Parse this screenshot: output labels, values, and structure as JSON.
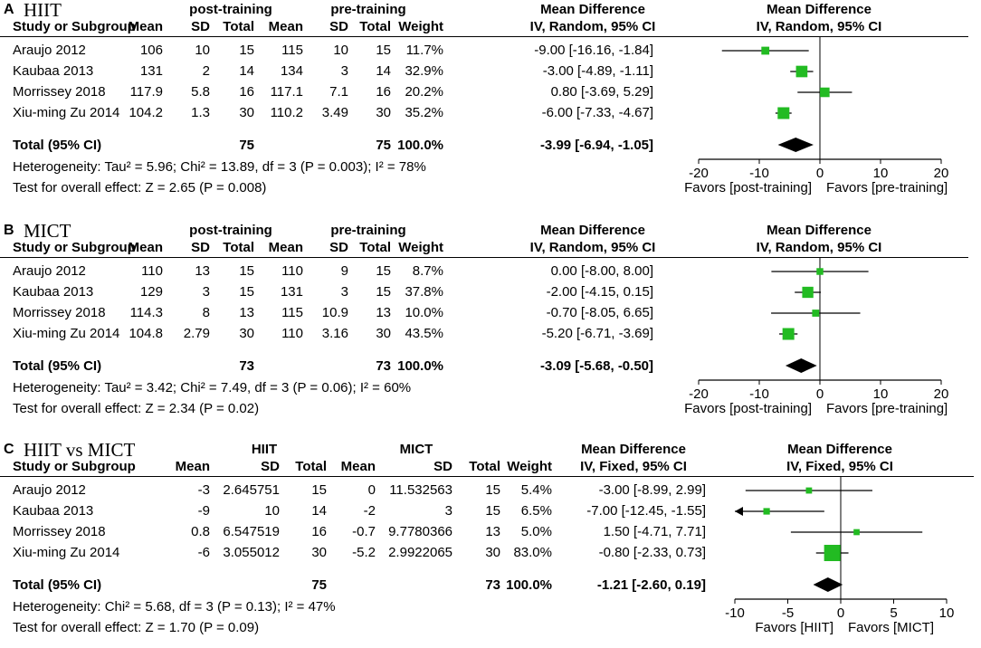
{
  "panels": [
    {
      "letter": "A",
      "title": "HIIT",
      "group1_label": "post-training",
      "group2_label": "pre-training",
      "headers": {
        "study": "Study or Subgroup",
        "mean1": "Mean",
        "sd1": "SD",
        "total1": "Total",
        "mean2": "Mean",
        "sd2": "SD",
        "total2": "Total",
        "weight": "Weight",
        "md_top": "Mean Difference",
        "md_bottom": "IV, Random, 95% CI"
      },
      "studies": [
        {
          "name": "Araujo 2012",
          "mean1": "106",
          "sd1": "10",
          "total1": "15",
          "mean2": "115",
          "sd2": "10",
          "total2": "15",
          "weight": "11.7%",
          "ci_text": "-9.00 [-16.16, -1.84]"
        },
        {
          "name": "Kaubaa 2013",
          "mean1": "131",
          "sd1": "2",
          "total1": "14",
          "mean2": "134",
          "sd2": "3",
          "total2": "14",
          "weight": "32.9%",
          "ci_text": "-3.00 [-4.89, -1.11]"
        },
        {
          "name": "Morrissey 2018",
          "mean1": "117.9",
          "sd1": "5.8",
          "total1": "16",
          "mean2": "117.1",
          "sd2": "7.1",
          "total2": "16",
          "weight": "20.2%",
          "ci_text": "0.80 [-3.69, 5.29]"
        },
        {
          "name": "Xiu-ming Zu 2014",
          "mean1": "104.2",
          "sd1": "1.3",
          "total1": "30",
          "mean2": "110.2",
          "sd2": "3.49",
          "total2": "30",
          "weight": "35.2%",
          "ci_text": "-6.00 [-7.33, -4.67]"
        }
      ],
      "total": {
        "label": "Total (95% CI)",
        "total1": "75",
        "total2": "75",
        "weight": "100.0%",
        "ci_text": "-3.99 [-6.94, -1.05]"
      },
      "heterogeneity": "Heterogeneity: Tau² = 5.96; Chi² = 13.89, df = 3 (P = 0.003); I² = 78%",
      "overall": "Test for overall effect: Z = 2.65 (P = 0.008)",
      "favors_left": "Favors [post-training]",
      "favors_right": "Favors [pre-training]"
    },
    {
      "letter": "B",
      "title": "MICT",
      "group1_label": "post-training",
      "group2_label": "pre-training",
      "headers": {
        "study": "Study or Subgroup",
        "mean1": "Mean",
        "sd1": "SD",
        "total1": "Total",
        "mean2": "Mean",
        "sd2": "SD",
        "total2": "Total",
        "weight": "Weight",
        "md_top": "Mean Difference",
        "md_bottom": "IV, Random, 95% CI"
      },
      "studies": [
        {
          "name": "Araujo 2012",
          "mean1": "110",
          "sd1": "13",
          "total1": "15",
          "mean2": "110",
          "sd2": "9",
          "total2": "15",
          "weight": "8.7%",
          "ci_text": "0.00 [-8.00, 8.00]"
        },
        {
          "name": "Kaubaa 2013",
          "mean1": "129",
          "sd1": "3",
          "total1": "15",
          "mean2": "131",
          "sd2": "3",
          "total2": "15",
          "weight": "37.8%",
          "ci_text": "-2.00 [-4.15, 0.15]"
        },
        {
          "name": "Morrissey 2018",
          "mean1": "114.3",
          "sd1": "8",
          "total1": "13",
          "mean2": "115",
          "sd2": "10.9",
          "total2": "13",
          "weight": "10.0%",
          "ci_text": "-0.70 [-8.05, 6.65]"
        },
        {
          "name": "Xiu-ming Zu 2014",
          "mean1": "104.8",
          "sd1": "2.79",
          "total1": "30",
          "mean2": "110",
          "sd2": "3.16",
          "total2": "30",
          "weight": "43.5%",
          "ci_text": "-5.20 [-6.71, -3.69]"
        }
      ],
      "total": {
        "label": "Total (95% CI)",
        "total1": "73",
        "total2": "73",
        "weight": "100.0%",
        "ci_text": "-3.09 [-5.68, -0.50]"
      },
      "heterogeneity": "Heterogeneity: Tau² = 3.42; Chi² = 7.49, df = 3 (P = 0.06); I² = 60%",
      "overall": "Test for overall effect: Z = 2.34 (P = 0.02)",
      "favors_left": "Favors [post-training]",
      "favors_right": "Favors [pre-training]"
    },
    {
      "letter": "C",
      "title": "HIIT vs MICT",
      "group1_label": "HIIT",
      "group2_label": "MICT",
      "headers": {
        "study": "Study or Subgroup",
        "mean1": "Mean",
        "sd1": "SD",
        "total1": "Total",
        "mean2": "Mean",
        "sd2": "SD",
        "total2": "Total",
        "weight": "Weight",
        "md_top": "Mean Difference",
        "md_bottom": "IV, Fixed, 95% CI"
      },
      "studies": [
        {
          "name": "Araujo 2012",
          "mean1": "-3",
          "sd1": "2.645751",
          "total1": "15",
          "mean2": "0",
          "sd2": "11.532563",
          "total2": "15",
          "weight": "5.4%",
          "ci_text": "-3.00 [-8.99, 2.99]"
        },
        {
          "name": "Kaubaa 2013",
          "mean1": "-9",
          "sd1": "10",
          "total1": "14",
          "mean2": "-2",
          "sd2": "3",
          "total2": "15",
          "weight": "6.5%",
          "ci_text": "-7.00 [-12.45, -1.55]"
        },
        {
          "name": "Morrissey 2018",
          "mean1": "0.8",
          "sd1": "6.547519",
          "total1": "16",
          "mean2": "-0.7",
          "sd2": "9.7780366",
          "total2": "13",
          "weight": "5.0%",
          "ci_text": "1.50 [-4.71, 7.71]"
        },
        {
          "name": "Xiu-ming Zu 2014",
          "mean1": "-6",
          "sd1": "3.055012",
          "total1": "30",
          "mean2": "-5.2",
          "sd2": "2.9922065",
          "total2": "30",
          "weight": "83.0%",
          "ci_text": "-0.80 [-2.33, 0.73]"
        }
      ],
      "total": {
        "label": "Total (95% CI)",
        "total1": "75",
        "total2": "73",
        "weight": "100.0%",
        "ci_text": "-1.21 [-2.60, 0.19]"
      },
      "heterogeneity": "Heterogeneity: Chi² = 5.68, df = 3 (P = 0.13); I² = 47%",
      "overall": "Test for overall effect: Z = 1.70 (P = 0.09)",
      "favors_left": "Favors [HIIT]",
      "favors_right": "Favors [MICT]"
    }
  ],
  "colors": {
    "marker": "#22bb22",
    "diamond": "#000000",
    "line": "#000000"
  },
  "chart_data": [
    {
      "type": "forest",
      "panel": "A",
      "title": "Mean Difference IV, Random, 95% CI",
      "xlim": [
        -20,
        20
      ],
      "ticks": [
        -20,
        -10,
        0,
        10,
        20
      ],
      "studies": [
        {
          "label": "Araujo 2012",
          "est": -9.0,
          "lo": -16.16,
          "hi": -1.84,
          "weight": 11.7
        },
        {
          "label": "Kaubaa 2013",
          "est": -3.0,
          "lo": -4.89,
          "hi": -1.11,
          "weight": 32.9
        },
        {
          "label": "Morrissey 2018",
          "est": 0.8,
          "lo": -3.69,
          "hi": 5.29,
          "weight": 20.2
        },
        {
          "label": "Xiu-ming Zu 2014",
          "est": -6.0,
          "lo": -7.33,
          "hi": -4.67,
          "weight": 35.2
        }
      ],
      "pooled": {
        "est": -3.99,
        "lo": -6.94,
        "hi": -1.05
      },
      "xlabel_left": "Favors [post-training]",
      "xlabel_right": "Favors [pre-training]"
    },
    {
      "type": "forest",
      "panel": "B",
      "title": "Mean Difference IV, Random, 95% CI",
      "xlim": [
        -20,
        20
      ],
      "ticks": [
        -20,
        -10,
        0,
        10,
        20
      ],
      "studies": [
        {
          "label": "Araujo 2012",
          "est": 0.0,
          "lo": -8.0,
          "hi": 8.0,
          "weight": 8.7
        },
        {
          "label": "Kaubaa 2013",
          "est": -2.0,
          "lo": -4.15,
          "hi": 0.15,
          "weight": 37.8
        },
        {
          "label": "Morrissey 2018",
          "est": -0.7,
          "lo": -8.05,
          "hi": 6.65,
          "weight": 10.0
        },
        {
          "label": "Xiu-ming Zu 2014",
          "est": -5.2,
          "lo": -6.71,
          "hi": -3.69,
          "weight": 43.5
        }
      ],
      "pooled": {
        "est": -3.09,
        "lo": -5.68,
        "hi": -0.5
      },
      "xlabel_left": "Favors [post-training]",
      "xlabel_right": "Favors [pre-training]"
    },
    {
      "type": "forest",
      "panel": "C",
      "title": "Mean Difference IV, Fixed, 95% CI",
      "xlim": [
        -10,
        10
      ],
      "ticks": [
        -10,
        -5,
        0,
        5,
        10
      ],
      "studies": [
        {
          "label": "Araujo 2012",
          "est": -3.0,
          "lo": -8.99,
          "hi": 2.99,
          "weight": 5.4
        },
        {
          "label": "Kaubaa 2013",
          "est": -7.0,
          "lo": -12.45,
          "hi": -1.55,
          "weight": 6.5
        },
        {
          "label": "Morrissey 2018",
          "est": 1.5,
          "lo": -4.71,
          "hi": 7.71,
          "weight": 5.0
        },
        {
          "label": "Xiu-ming Zu 2014",
          "est": -0.8,
          "lo": -2.33,
          "hi": 0.73,
          "weight": 83.0
        }
      ],
      "pooled": {
        "est": -1.21,
        "lo": -2.6,
        "hi": 0.19
      },
      "xlabel_left": "Favors [HIIT]",
      "xlabel_right": "Favors [MICT]"
    }
  ]
}
